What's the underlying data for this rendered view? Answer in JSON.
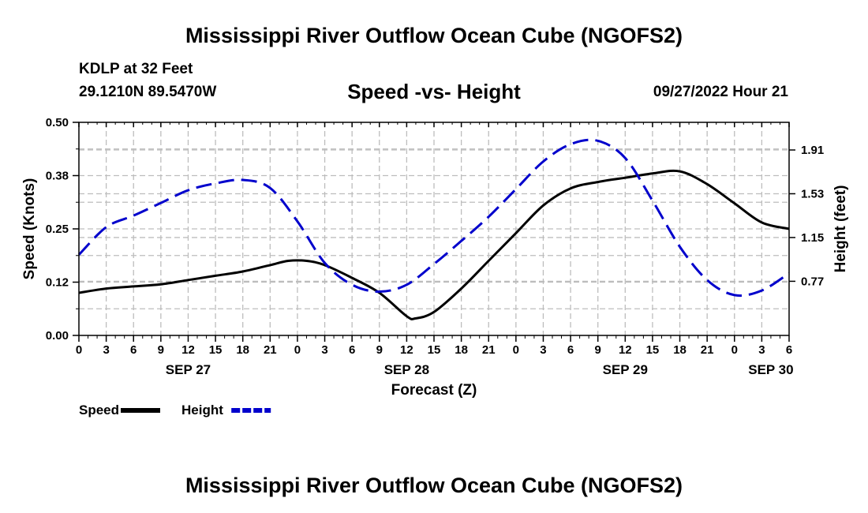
{
  "header": {
    "title": "Mississippi River Outflow Ocean Cube (NGOFS2)",
    "station": "KDLP at 32 Feet",
    "location": "29.1210N  89.5470W",
    "subtitle": "Speed -vs- Height",
    "datetime": "09/27/2022 Hour 21"
  },
  "footer": {
    "title": "Mississippi River Outflow Ocean Cube (NGOFS2)"
  },
  "chart_data": {
    "type": "line",
    "title": "Speed -vs- Height",
    "xlabel": "Forecast (Z)",
    "ylabel": "Speed (Knots)",
    "y2label": "Height (feet)",
    "x_unit": "forecast hours from SEP 27 00Z",
    "xlim": [
      0,
      78
    ],
    "ylim": [
      0,
      0.5
    ],
    "y2lim": [
      0.3,
      2.15
    ],
    "x_ticks": [
      0,
      3,
      6,
      9,
      12,
      15,
      18,
      21,
      24,
      27,
      30,
      33,
      36,
      39,
      42,
      45,
      48,
      51,
      54,
      57,
      60,
      63,
      66,
      69,
      72,
      75,
      78
    ],
    "x_tick_labels": [
      "0",
      "3",
      "6",
      "9",
      "12",
      "15",
      "18",
      "21",
      "0",
      "3",
      "6",
      "9",
      "12",
      "15",
      "18",
      "21",
      "0",
      "3",
      "6",
      "9",
      "12",
      "15",
      "18",
      "21",
      "0",
      "3",
      "6"
    ],
    "date_labels": [
      {
        "x": 12,
        "label": "SEP 27"
      },
      {
        "x": 36,
        "label": "SEP 28"
      },
      {
        "x": 60,
        "label": "SEP 29"
      },
      {
        "x": 76,
        "label": "SEP 30"
      }
    ],
    "y_ticks": [
      0,
      0.125,
      0.25,
      0.375,
      0.5
    ],
    "y_tick_labels": [
      "0.00",
      "0.12",
      "0.25",
      "0.38",
      "0.50"
    ],
    "y2_ticks": [
      0.77,
      1.15,
      1.53,
      1.91
    ],
    "y2_tick_labels": [
      "0.77",
      "1.15",
      "1.53",
      "1.91"
    ],
    "grid": true,
    "series": [
      {
        "name": "Speed",
        "axis": "left",
        "color": "#000000",
        "dash": "solid",
        "x": [
          0,
          3,
          6,
          9,
          12,
          15,
          18,
          21,
          23,
          25,
          27,
          30,
          33,
          36,
          37,
          39,
          42,
          45,
          48,
          51,
          54,
          57,
          60,
          63,
          66,
          69,
          72,
          75,
          78
        ],
        "y": [
          0.1,
          0.11,
          0.115,
          0.12,
          0.13,
          0.14,
          0.15,
          0.165,
          0.175,
          0.175,
          0.165,
          0.135,
          0.1,
          0.045,
          0.04,
          0.055,
          0.11,
          0.175,
          0.24,
          0.305,
          0.345,
          0.36,
          0.37,
          0.38,
          0.385,
          0.355,
          0.31,
          0.265,
          0.25
        ]
      },
      {
        "name": "Height",
        "axis": "right",
        "color": "#0000cc",
        "dash": "dashed",
        "x": [
          0,
          3,
          6,
          9,
          12,
          15,
          18,
          21,
          24,
          27,
          30,
          33,
          36,
          39,
          42,
          45,
          48,
          51,
          54,
          57,
          60,
          63,
          66,
          69,
          72,
          75,
          78
        ],
        "y": [
          1.0,
          1.24,
          1.34,
          1.45,
          1.56,
          1.62,
          1.65,
          1.58,
          1.29,
          0.93,
          0.74,
          0.68,
          0.74,
          0.92,
          1.12,
          1.33,
          1.57,
          1.81,
          1.96,
          1.99,
          1.84,
          1.47,
          1.07,
          0.78,
          0.65,
          0.69,
          0.84
        ]
      }
    ],
    "legend": [
      {
        "label": "Speed",
        "color": "#000000",
        "dash": "solid"
      },
      {
        "label": "Height",
        "color": "#0000cc",
        "dash": "dashed"
      }
    ],
    "legend_position": "bottom-left"
  }
}
